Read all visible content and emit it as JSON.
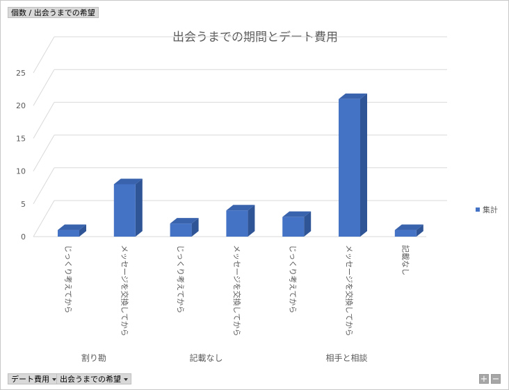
{
  "pivot": {
    "value_field": "個数 / 出会うまでの希望",
    "axis_fields": [
      {
        "label": "デート費用"
      },
      {
        "label": "出会うまでの希望"
      }
    ],
    "zoom_in": "+",
    "zoom_out": "−"
  },
  "chart_data": {
    "type": "bar",
    "title": "出会うまでの期間とデート費用",
    "groups": [
      {
        "label": "割り勘",
        "categories": [
          "じっくり考えてから",
          "メッセージを交換してから"
        ]
      },
      {
        "label": "記載なし",
        "categories": [
          "じっくり考えてから",
          "メッセージを交換してから"
        ]
      },
      {
        "label": "相手と相談",
        "categories": [
          "じっくり考えてから",
          "メッセージを交換してから",
          "記載なし"
        ]
      }
    ],
    "series": [
      {
        "name": "集計",
        "values": [
          1,
          8,
          2,
          4,
          3,
          21,
          1
        ],
        "color": "#4472c4"
      }
    ],
    "yticks": [
      0,
      5,
      10,
      15,
      20,
      25
    ],
    "ylim": [
      0,
      25
    ],
    "grid": true,
    "legend_position": "right",
    "colors": {
      "front": "#4472c4",
      "side": "#2f5597",
      "top": "#3a63ad",
      "grid": "#d9d9d9"
    }
  }
}
